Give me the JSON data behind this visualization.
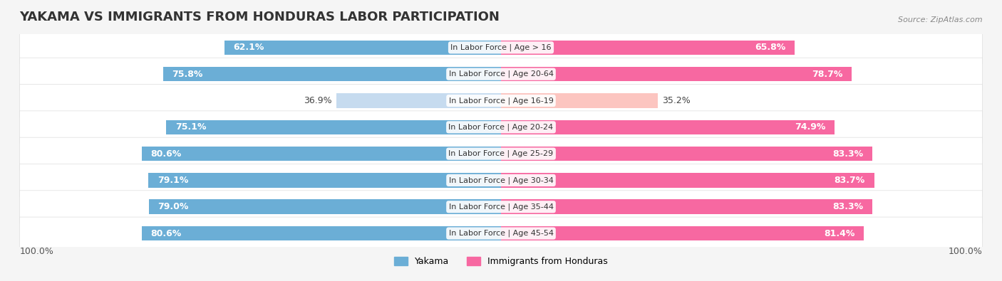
{
  "title": "YAKAMA VS IMMIGRANTS FROM HONDURAS LABOR PARTICIPATION",
  "source": "Source: ZipAtlas.com",
  "categories": [
    "In Labor Force | Age > 16",
    "In Labor Force | Age 20-64",
    "In Labor Force | Age 16-19",
    "In Labor Force | Age 20-24",
    "In Labor Force | Age 25-29",
    "In Labor Force | Age 30-34",
    "In Labor Force | Age 35-44",
    "In Labor Force | Age 45-54"
  ],
  "yakama_values": [
    62.1,
    75.8,
    36.9,
    75.1,
    80.6,
    79.1,
    79.0,
    80.6
  ],
  "honduras_values": [
    65.8,
    78.7,
    35.2,
    74.9,
    83.3,
    83.7,
    83.3,
    81.4
  ],
  "yakama_color": "#6baed6",
  "yakama_color_light": "#c6dbef",
  "honduras_color": "#f768a1",
  "honduras_color_light": "#fcc5c0",
  "bg_color": "#f5f5f5",
  "row_bg": "#ffffff",
  "bar_height": 0.55,
  "legend_yakama": "Yakama",
  "legend_honduras": "Immigrants from Honduras",
  "left_label": "100.0%",
  "right_label": "100.0%",
  "title_fontsize": 13,
  "label_fontsize": 9,
  "tick_fontsize": 9
}
